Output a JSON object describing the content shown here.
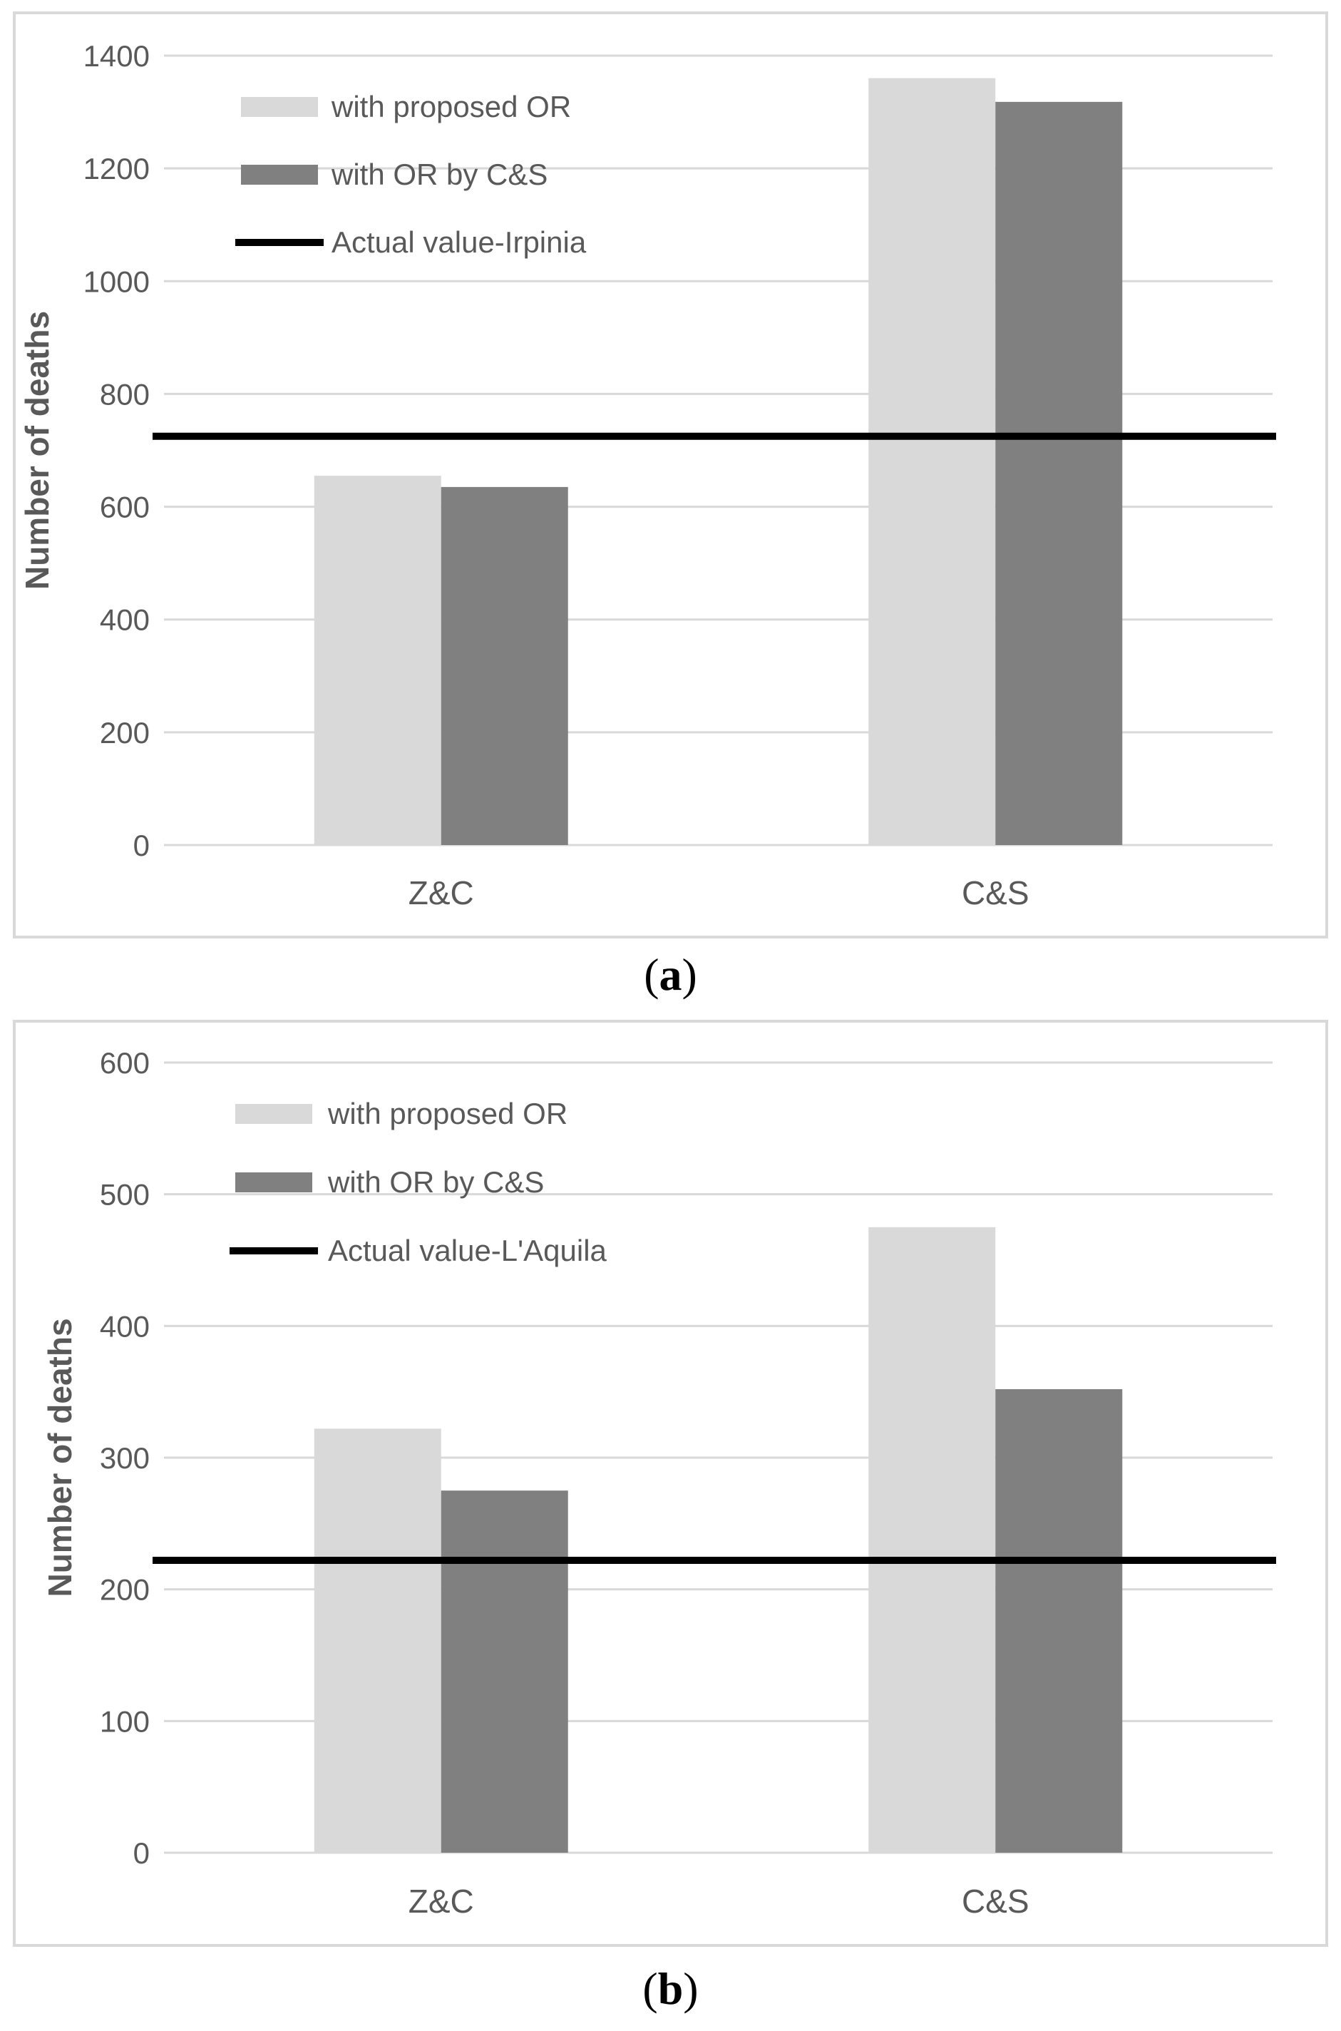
{
  "chart_data": [
    {
      "panel": "(a)",
      "type": "bar",
      "categories": [
        "Z&C",
        "C&S"
      ],
      "series": [
        {
          "name": "with proposed OR",
          "values": [
            655,
            1360
          ],
          "color": "#d9d9d9"
        },
        {
          "name": "with OR by C&S",
          "values": [
            635,
            1318
          ],
          "color": "#808080"
        }
      ],
      "reference_line": {
        "name": "Actual value-Irpinia",
        "value": 725,
        "color": "#000000"
      },
      "ylabel": "Number of deaths",
      "xlabel": "",
      "ylim": [
        0,
        1400
      ],
      "yticks": [
        0,
        200,
        400,
        600,
        800,
        1000,
        1200,
        1400
      ],
      "grid": true,
      "legend_position": "top-left"
    },
    {
      "panel": "(b)",
      "type": "bar",
      "categories": [
        "Z&C",
        "C&S"
      ],
      "series": [
        {
          "name": "with proposed OR",
          "values": [
            322,
            475
          ],
          "color": "#d9d9d9"
        },
        {
          "name": "with OR by C&S",
          "values": [
            275,
            352
          ],
          "color": "#808080"
        }
      ],
      "reference_line": {
        "name": "Actual value-L'Aquila",
        "value": 222,
        "color": "#000000"
      },
      "ylabel": "Number of deaths",
      "xlabel": "",
      "ylim": [
        0,
        600
      ],
      "yticks": [
        0,
        100,
        200,
        300,
        400,
        500,
        600
      ],
      "grid": true,
      "legend_position": "top-left"
    }
  ],
  "captions": {
    "a_open": "(",
    "a_letter": "a",
    "a_close": ")",
    "b_open": "(",
    "b_letter": "b",
    "b_close": ")"
  }
}
